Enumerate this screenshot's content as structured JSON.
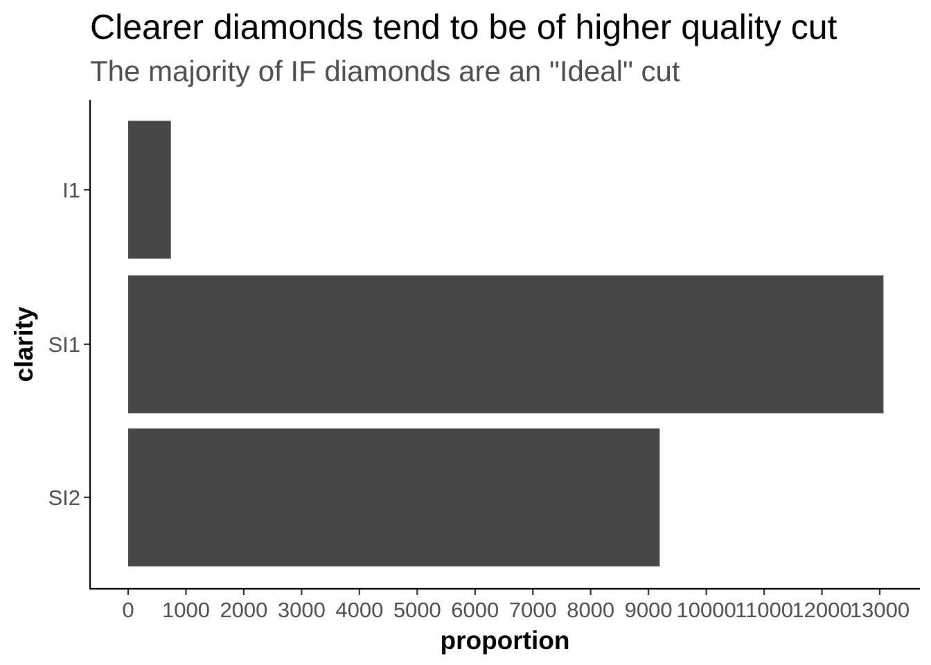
{
  "chart_data": {
    "type": "bar",
    "orientation": "horizontal",
    "title": "Clearer diamonds tend to be of higher quality cut",
    "subtitle": "The majority of IF diamonds are an \"Ideal\" cut",
    "xlabel": "proportion",
    "ylabel": "clarity",
    "categories": [
      "I1",
      "SI1",
      "SI2"
    ],
    "values": [
      740,
      13065,
      9194
    ],
    "xlim": [
      0,
      13000
    ],
    "xticks": [
      0,
      1000,
      2000,
      3000,
      4000,
      5000,
      6000,
      7000,
      8000,
      9000,
      10000,
      11000,
      12000,
      13000
    ],
    "xtick_labels": [
      "0",
      "1000",
      "2000",
      "3000",
      "4000",
      "5000",
      "6000",
      "7000",
      "8000",
      "9000",
      "10000",
      "11000",
      "12000",
      "13000"
    ],
    "grid": false,
    "legend": "none",
    "colors": {
      "bar": "#474747",
      "axis": "#000000",
      "tick_label": "#4d4d4d",
      "subtitle": "#4d4d4d"
    }
  }
}
